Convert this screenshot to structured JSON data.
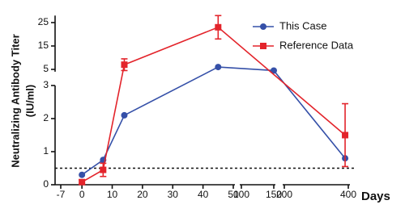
{
  "chart_data": {
    "type": "line",
    "y_title": "Neutralizing Antibody Titer",
    "y_subtitle": "(IU/ml)",
    "x_title": "Days",
    "x_segments": [
      {
        "xlim": [
          -7,
          50
        ],
        "xticks": [
          -7,
          0,
          10,
          20,
          30,
          40,
          50
        ]
      },
      {
        "xlim": [
          100,
          150
        ],
        "xticks": [
          100,
          150
        ]
      },
      {
        "xlim": [
          200,
          400
        ],
        "xticks": [
          200,
          400
        ]
      }
    ],
    "y_segments": [
      {
        "ylim": [
          0,
          3
        ],
        "yticks": [
          0,
          1,
          2,
          3
        ]
      },
      {
        "ylim": [
          4,
          28
        ],
        "yticks": [
          5,
          15,
          25
        ]
      }
    ],
    "reference_line": 0.5,
    "series": [
      {
        "name": "This Case",
        "color": "#3550a8",
        "marker": "circle",
        "x": [
          0,
          7,
          14,
          45,
          150,
          390
        ],
        "values": [
          0.3,
          0.75,
          2.1,
          6,
          4.5,
          0.8
        ]
      },
      {
        "name": "Reference Data",
        "color": "#e3242b",
        "marker": "square",
        "x": [
          0,
          7,
          14,
          45,
          390
        ],
        "values": [
          0.08,
          0.45,
          7,
          23,
          1.5
        ],
        "errors": [
          0.07,
          0.2,
          2.5,
          5,
          0.95
        ]
      }
    ]
  }
}
